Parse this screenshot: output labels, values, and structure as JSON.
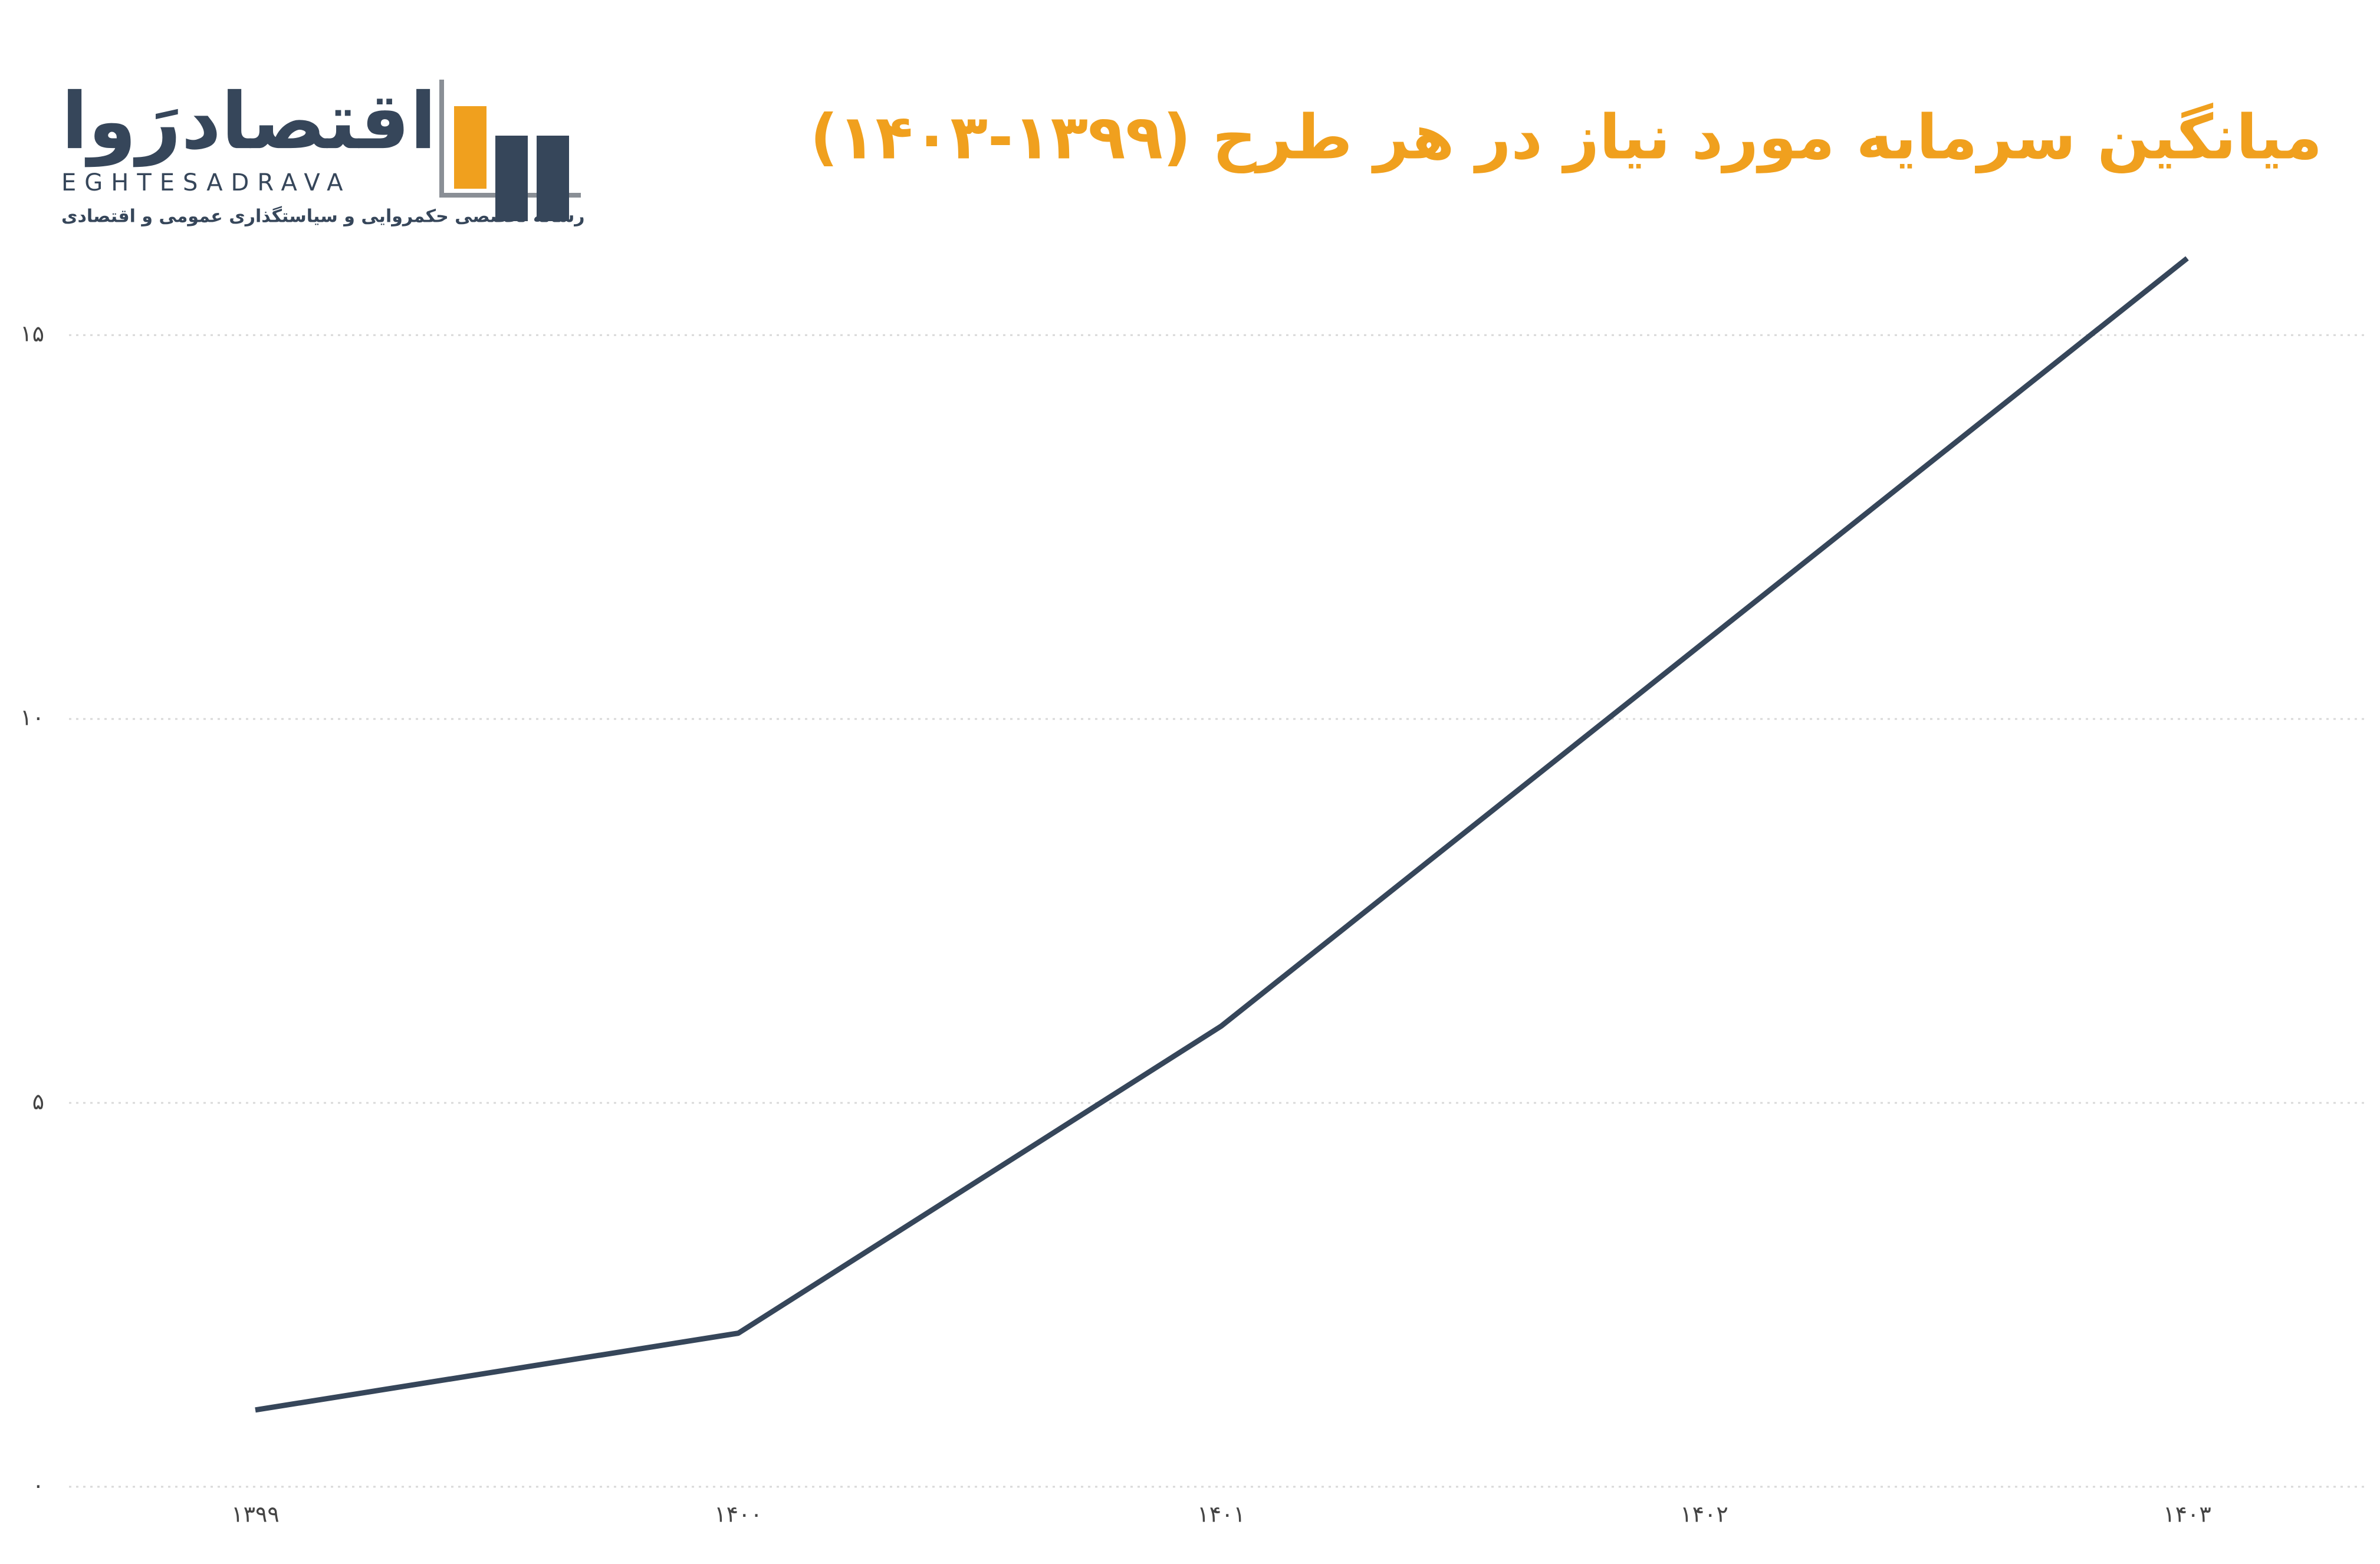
{
  "logo": {
    "name": "اقتصادرَوا",
    "latin": "EGHTESADRAVA",
    "tagline": "رسانه تخصصی حکمروایی و سیاستگذاری عمومی و اقتصادی"
  },
  "chart_data": {
    "type": "line",
    "title": "میانگین سرمایه مورد نیاز در هر طرح (۱۳۹۹-۱۴۰۳)",
    "categories": [
      "۱۳۹۹",
      "۱۴۰۰",
      "۱۴۰۱",
      "۱۴۰۲",
      "۱۴۰۳"
    ],
    "values": [
      1,
      2,
      6,
      11,
      16
    ],
    "color": "#36465a",
    "ylim": [
      0,
      16
    ],
    "yticks": [
      {
        "value": 0,
        "label": "۰"
      },
      {
        "value": 5,
        "label": "۵"
      },
      {
        "value": 10,
        "label": "۱۰"
      },
      {
        "value": 15,
        "label": "۱۵"
      }
    ],
    "grid": true
  }
}
